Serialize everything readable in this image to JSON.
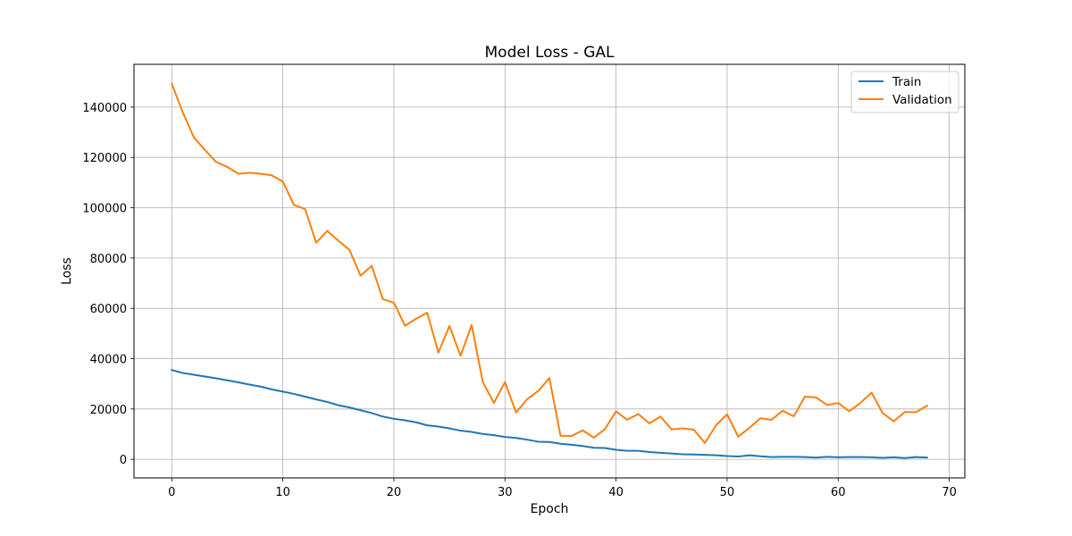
{
  "chart_data": {
    "type": "line",
    "title": "Model Loss - GAL",
    "xlabel": "Epoch",
    "ylabel": "Loss",
    "xlim": [
      -3.4,
      71.4
    ],
    "ylim": [
      -7400,
      157000
    ],
    "xticks": [
      0,
      10,
      20,
      30,
      40,
      50,
      60,
      70
    ],
    "yticks": [
      0,
      20000,
      40000,
      60000,
      80000,
      100000,
      120000,
      140000
    ],
    "grid": true,
    "legend_position": "top-right",
    "series": [
      {
        "name": "Train",
        "color": "#1f77b4",
        "x": [
          0,
          1,
          2,
          3,
          4,
          5,
          6,
          7,
          8,
          9,
          10,
          11,
          12,
          13,
          14,
          15,
          16,
          17,
          18,
          19,
          20,
          21,
          22,
          23,
          24,
          25,
          26,
          27,
          28,
          29,
          30,
          31,
          32,
          33,
          34,
          35,
          36,
          37,
          38,
          39,
          40,
          41,
          42,
          43,
          44,
          45,
          46,
          47,
          48,
          49,
          50,
          51,
          52,
          53,
          54,
          55,
          56,
          57,
          58,
          59,
          60,
          61,
          62,
          63,
          64,
          65,
          66,
          67,
          68
        ],
        "values": [
          35500,
          34300,
          33600,
          32900,
          32200,
          31400,
          30600,
          29700,
          28900,
          27800,
          26900,
          26000,
          24900,
          23800,
          22800,
          21500,
          20600,
          19500,
          18400,
          17000,
          16100,
          15500,
          14700,
          13500,
          13000,
          12300,
          11400,
          10900,
          10100,
          9600,
          8900,
          8500,
          7800,
          7000,
          6900,
          6200,
          5800,
          5300,
          4600,
          4500,
          3800,
          3400,
          3400,
          2900,
          2600,
          2300,
          2000,
          1900,
          1800,
          1600,
          1300,
          1100,
          1600,
          1200,
          900,
          1000,
          1000,
          900,
          700,
          1000,
          800,
          900,
          900,
          800,
          600,
          800,
          500,
          900,
          700
        ]
      },
      {
        "name": "Validation",
        "color": "#ff7f0e",
        "x": [
          0,
          1,
          2,
          3,
          4,
          5,
          6,
          7,
          8,
          9,
          10,
          11,
          12,
          13,
          14,
          15,
          16,
          17,
          18,
          19,
          20,
          21,
          22,
          23,
          24,
          25,
          26,
          27,
          28,
          29,
          30,
          31,
          32,
          33,
          34,
          35,
          36,
          37,
          38,
          39,
          40,
          41,
          42,
          43,
          44,
          45,
          46,
          47,
          48,
          49,
          50,
          51,
          52,
          53,
          54,
          55,
          56,
          57,
          58,
          59,
          60,
          61,
          62,
          63,
          64,
          65,
          66,
          67,
          68
        ],
        "values": [
          149300,
          137800,
          127900,
          122900,
          118200,
          116200,
          113500,
          113900,
          113500,
          112900,
          110400,
          101100,
          99500,
          86100,
          90800,
          86900,
          83200,
          73000,
          76900,
          63700,
          62200,
          53100,
          55900,
          58300,
          42400,
          53000,
          41200,
          53400,
          30800,
          22400,
          30700,
          18600,
          23900,
          27200,
          32300,
          9400,
          9300,
          11500,
          8600,
          12000,
          19100,
          15700,
          18000,
          14300,
          17000,
          11900,
          12300,
          11800,
          6500,
          13500,
          17900,
          9000,
          12500,
          16300,
          15700,
          19300,
          17100,
          24900,
          24600,
          21600,
          22400,
          19100,
          22400,
          26500,
          18400,
          15100,
          18800,
          18700,
          21300
        ]
      }
    ]
  }
}
